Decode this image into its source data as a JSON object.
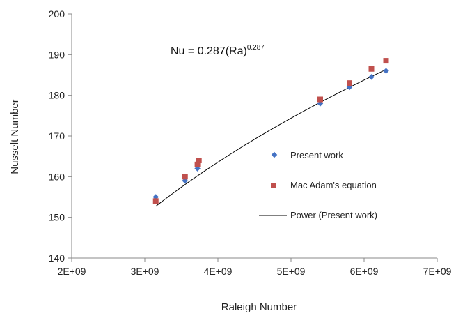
{
  "chart_data": {
    "type": "scatter",
    "title": "",
    "xlabel": "Raleigh Number",
    "ylabel": "Nusselt Number",
    "xlim": [
      2000000000,
      7000000000
    ],
    "ylim": [
      140,
      200
    ],
    "x_ticks": [
      2000000000,
      3000000000,
      4000000000,
      5000000000,
      6000000000,
      7000000000
    ],
    "x_tick_labels": [
      "2E+09",
      "3E+09",
      "4E+09",
      "5E+09",
      "6E+09",
      "7E+09"
    ],
    "y_ticks": [
      140,
      150,
      160,
      170,
      180,
      190,
      200
    ],
    "y_tick_labels": [
      "140",
      "150",
      "160",
      "170",
      "180",
      "190",
      "200"
    ],
    "grid": false,
    "legend_position": "right",
    "annotation": {
      "base": "Nu = 0.287(Ra)",
      "exponent": "0.287"
    },
    "series": [
      {
        "name": "Present work",
        "marker": "diamond",
        "color": "#4472C4",
        "points": [
          {
            "x": 3150000000,
            "y": 155
          },
          {
            "x": 3550000000,
            "y": 159
          },
          {
            "x": 3720000000,
            "y": 162
          },
          {
            "x": 5400000000,
            "y": 178
          },
          {
            "x": 5800000000,
            "y": 182
          },
          {
            "x": 6100000000,
            "y": 184.5
          },
          {
            "x": 6300000000,
            "y": 186
          }
        ]
      },
      {
        "name": "Mac Adam's equation",
        "marker": "square",
        "color": "#C0504D",
        "points": [
          {
            "x": 3150000000,
            "y": 154
          },
          {
            "x": 3550000000,
            "y": 160
          },
          {
            "x": 3720000000,
            "y": 163
          },
          {
            "x": 3740000000,
            "y": 164
          },
          {
            "x": 5400000000,
            "y": 179
          },
          {
            "x": 5800000000,
            "y": 183
          },
          {
            "x": 6100000000,
            "y": 186.5
          },
          {
            "x": 6300000000,
            "y": 188.5
          }
        ]
      },
      {
        "name": "Power (Present work)",
        "marker": "line",
        "color": "#000000",
        "x_range": [
          3150000000,
          6300000000
        ],
        "fit": {
          "coefficient": 0.287,
          "exponent": 0.287
        }
      }
    ]
  }
}
